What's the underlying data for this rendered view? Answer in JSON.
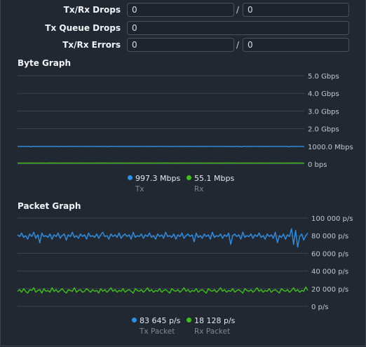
{
  "counters": [
    {
      "label": "Tx/Rx Drops",
      "tx_value": "0",
      "rx_value": "0",
      "separator": "/"
    },
    {
      "label": "Tx Queue Drops",
      "value": "0"
    },
    {
      "label": "Tx/Rx Errors",
      "tx_value": "0",
      "rx_value": "0",
      "separator": "/"
    }
  ],
  "byte_graph": {
    "title": "Byte Graph",
    "legend": [
      {
        "value": "997.3 Mbps",
        "name": "Tx",
        "color": "#2d8fe6"
      },
      {
        "value": "55.1 Mbps",
        "name": "Rx",
        "color": "#3ec21a"
      }
    ]
  },
  "packet_graph": {
    "title": "Packet Graph",
    "legend": [
      {
        "value": "83 645 p/s",
        "name": "Tx Packet",
        "color": "#2d8fe6"
      },
      {
        "value": "18 128 p/s",
        "name": "Rx Packet",
        "color": "#3ec21a"
      }
    ]
  },
  "chart_data": [
    {
      "type": "line",
      "title": "Byte Graph",
      "y_unit": "bps",
      "ylim": [
        0,
        5000000000
      ],
      "y_ticks": [
        "0 bps",
        "1000.0 Mbps",
        "2.0 Gbps",
        "3.0 Gbps",
        "4.0 Gbps",
        "5.0 Gbps"
      ],
      "grid": true,
      "series": [
        {
          "name": "Tx",
          "color": "#2d8fe6",
          "values": [
            1000,
            995,
            1002,
            990,
            1005,
            998,
            1000,
            975,
            1003,
            996,
            1001,
            994,
            1004,
            997,
            1000,
            1003,
            996,
            999,
            1002,
            995,
            1000,
            985,
            1002,
            998,
            1001,
            996,
            1003,
            999,
            1000,
            994,
            1002,
            997,
            1005,
            996,
            1000,
            1003,
            995,
            1000,
            998,
            1002,
            996,
            1000,
            992,
            1003,
            998,
            1001,
            994,
            1000,
            1004,
            997,
            1000,
            996,
            1002,
            1000,
            995,
            1003,
            998,
            1001,
            996,
            1002,
            999,
            1000,
            994,
            1003,
            997,
            1000,
            1002,
            995,
            1001,
            998,
            1000,
            996,
            1003,
            999,
            1000,
            995,
            1002,
            997,
            1001,
            990,
            1004,
            998,
            1000,
            996,
            1002,
            1000,
            994,
            1003,
            998,
            1001,
            997,
            1000,
            1002,
            995,
            1000,
            998,
            1003,
            996,
            1001,
            999,
            1000,
            995,
            1002,
            997,
            1000,
            1003,
            996,
            1001,
            998,
            1000,
            980,
            1002,
            997,
            1000,
            975,
            1003,
            998,
            1000,
            996,
            1002,
            999,
            1001,
            995,
            1000,
            1003,
            997,
            1000,
            998,
            1002,
            996,
            1000,
            1001,
            997,
            1000,
            1002,
            998,
            1000,
            1000,
            975,
            1000,
            1002,
            998,
            1000,
            997,
            1001,
            999,
            997
          ]
        },
        {
          "name": "Rx",
          "color": "#3ec21a",
          "values": [
            55,
            54,
            56,
            55,
            53,
            57,
            55,
            54,
            56,
            52,
            55,
            57,
            54,
            55,
            56,
            53,
            55,
            58,
            54,
            55,
            56,
            55,
            53,
            56,
            55,
            54,
            57,
            55,
            56,
            53,
            55,
            54,
            56,
            55,
            57,
            54,
            55,
            53,
            56,
            55,
            54,
            56,
            55,
            58,
            54,
            55,
            56,
            53,
            55,
            54,
            57,
            55,
            56,
            54,
            55,
            53,
            56,
            55,
            54,
            57,
            55,
            56,
            53,
            55,
            54,
            56,
            55,
            57,
            54,
            55,
            53,
            56,
            55,
            54,
            56,
            55,
            58,
            54,
            55,
            56,
            53,
            55,
            54,
            57,
            55,
            56,
            54,
            55,
            53,
            56,
            55,
            54,
            57,
            55,
            56,
            53,
            55,
            54,
            56,
            55,
            57,
            54,
            55,
            53,
            56,
            55,
            54,
            56,
            55,
            58,
            54,
            55,
            56,
            53,
            55,
            54,
            57,
            55,
            56,
            54,
            55,
            53,
            56,
            55,
            54,
            57,
            55,
            56,
            53,
            55,
            54,
            56,
            55,
            57,
            54,
            55,
            53,
            56,
            55,
            54,
            56,
            55,
            58,
            54,
            55,
            56,
            55,
            55
          ]
        }
      ]
    },
    {
      "type": "line",
      "title": "Packet Graph",
      "y_unit": "p/s",
      "ylim": [
        0,
        100000
      ],
      "y_ticks": [
        "0 p/s",
        "20 000 p/s",
        "40 000 p/s",
        "60 000 p/s",
        "80 000 p/s",
        "100 000 p/s"
      ],
      "grid": true,
      "series": [
        {
          "name": "Tx Packet",
          "color": "#2d8fe6",
          "values": [
            81000,
            79000,
            83000,
            78000,
            80000,
            76000,
            82000,
            79000,
            84000,
            77000,
            81000,
            72000,
            83000,
            79000,
            80000,
            78000,
            82000,
            76000,
            81000,
            79000,
            83000,
            77000,
            80000,
            82000,
            75000,
            81000,
            79000,
            84000,
            78000,
            80000,
            77000,
            82000,
            79000,
            81000,
            76000,
            83000,
            79000,
            80000,
            78000,
            82000,
            77000,
            81000,
            84000,
            79000,
            80000,
            76000,
            82000,
            79000,
            81000,
            78000,
            83000,
            77000,
            80000,
            82000,
            79000,
            81000,
            76000,
            84000,
            78000,
            80000,
            79000,
            82000,
            77000,
            81000,
            79000,
            83000,
            78000,
            80000,
            76000,
            82000,
            79000,
            81000,
            77000,
            84000,
            79000,
            80000,
            78000,
            82000,
            76000,
            81000,
            79000,
            83000,
            77000,
            80000,
            82000,
            79000,
            81000,
            73000,
            83000,
            78000,
            80000,
            77000,
            82000,
            79000,
            81000,
            76000,
            84000,
            78000,
            80000,
            79000,
            82000,
            77000,
            81000,
            79000,
            83000,
            70000,
            80000,
            82000,
            79000,
            81000,
            76000,
            84000,
            78000,
            80000,
            79000,
            82000,
            77000,
            81000,
            79000,
            83000,
            78000,
            80000,
            76000,
            82000,
            79000,
            81000,
            77000,
            84000,
            72000,
            80000,
            78000,
            82000,
            76000,
            81000,
            79000,
            88000,
            70000,
            86000,
            67000,
            79000,
            82000,
            75000,
            80000,
            83000
          ]
        },
        {
          "name": "Rx Packet",
          "color": "#3ec21a",
          "values": [
            17000,
            19000,
            16000,
            20000,
            17000,
            15000,
            19000,
            18000,
            21000,
            16000,
            18000,
            19000,
            15000,
            20000,
            17000,
            18000,
            16000,
            21000,
            17000,
            19000,
            16000,
            18000,
            20000,
            17000,
            15000,
            19000,
            18000,
            17000,
            21000,
            16000,
            18000,
            19000,
            16000,
            17000,
            20000,
            18000,
            16000,
            19000,
            17000,
            18000,
            15000,
            20000,
            17000,
            19000,
            16000,
            18000,
            21000,
            17000,
            19000,
            16000,
            18000,
            17000,
            20000,
            16000,
            18000,
            19000,
            17000,
            15000,
            20000,
            18000,
            17000,
            19000,
            16000,
            18000,
            21000,
            17000,
            19000,
            16000,
            18000,
            17000,
            20000,
            16000,
            18000,
            19000,
            17000,
            15000,
            20000,
            18000,
            17000,
            19000,
            16000,
            18000,
            21000,
            17000,
            19000,
            16000,
            18000,
            17000,
            20000,
            16000,
            18000,
            19000,
            17000,
            15000,
            20000,
            18000,
            17000,
            19000,
            16000,
            18000,
            21000,
            17000,
            19000,
            16000,
            18000,
            17000,
            20000,
            16000,
            18000,
            19000,
            17000,
            15000,
            20000,
            18000,
            17000,
            19000,
            16000,
            18000,
            21000,
            17000,
            19000,
            16000,
            18000,
            17000,
            20000,
            16000,
            18000,
            19000,
            17000,
            15000,
            20000,
            18000,
            17000,
            19000,
            16000,
            18000,
            21000,
            17000,
            19000,
            16000,
            18000,
            17000,
            22000,
            18000
          ]
        }
      ]
    }
  ]
}
